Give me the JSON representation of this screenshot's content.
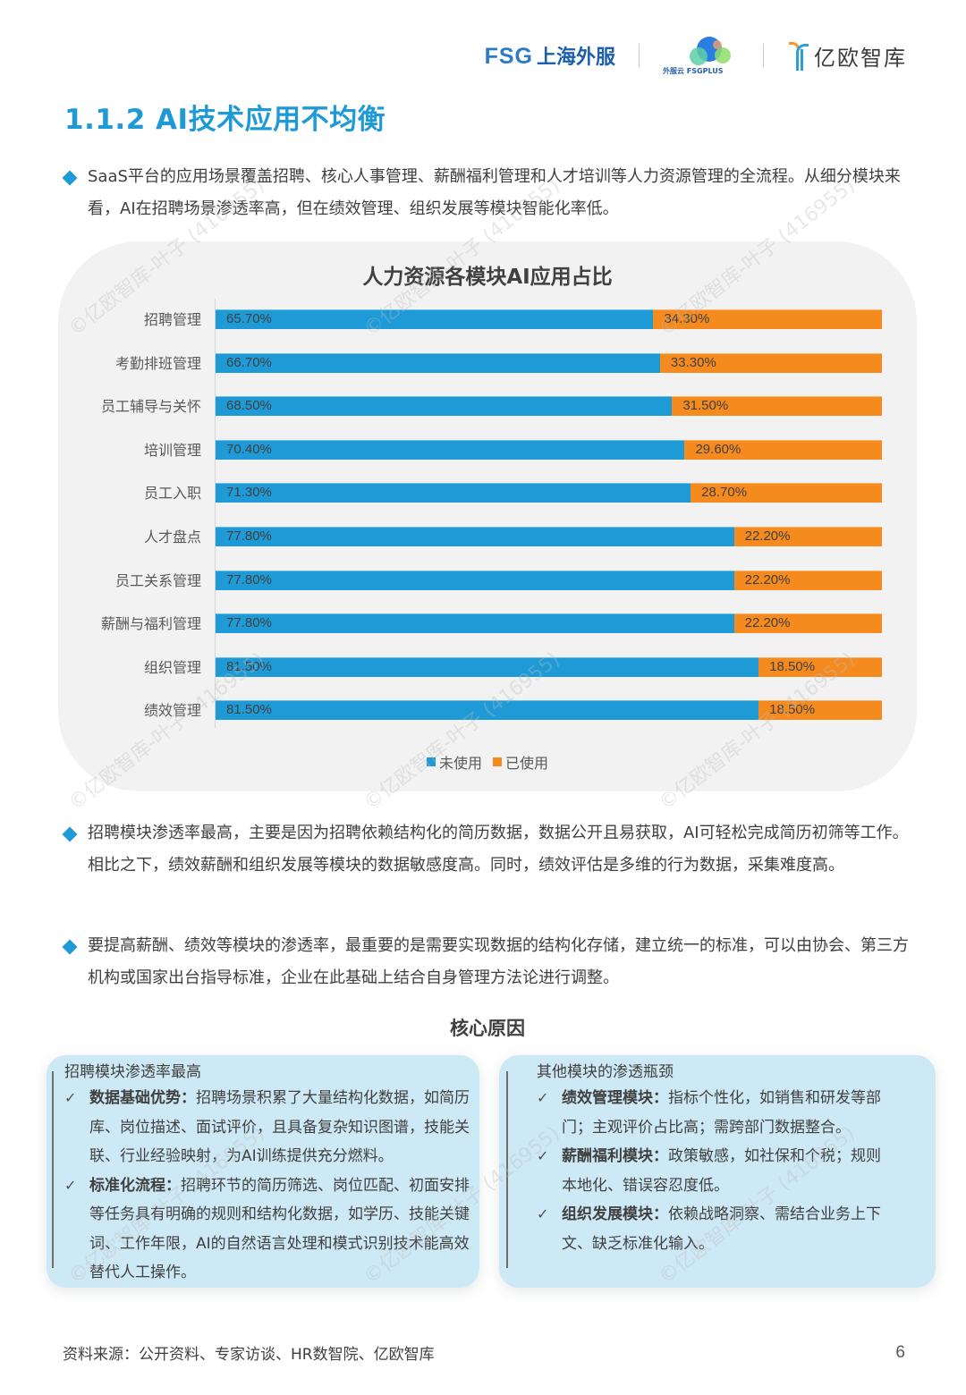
{
  "header": {
    "logos": [
      {
        "en": "FSG",
        "cn": "上海外服"
      },
      {
        "text": "外服云 FSGPLUS"
      },
      {
        "name": "亿欧智库"
      }
    ]
  },
  "section_title": "1.1.2 AI技术应用不均衡",
  "paragraphs": [
    "SaaS平台的应用场景覆盖招聘、核心人事管理、薪酬福利管理和人才培训等人力资源管理的全流程。从细分模块来看，AI在招聘场景渗透率高，但在绩效管理、组织发展等模块智能化率低。",
    "招聘模块渗透率最高，主要是因为招聘依赖结构化的简历数据，数据公开且易获取，AI可轻松完成简历初筛等工作。相比之下，绩效薪酬和组织发展等模块的数据敏感度高。同时，绩效评估是多维的行为数据，采集难度高。",
    "要提高薪酬、绩效等模块的渗透率，最重要的是需要实现数据的结构化存储，建立统一的标准，可以由协会、第三方机构或国家出台指导标准，企业在此基础上结合自身管理方法论进行调整。"
  ],
  "colors": {
    "title_blue": "#1e9ad6",
    "unused": "#1e9ad6",
    "used": "#f58a1f",
    "panel_bg": "#f2f2f2",
    "box_bg": "#cde9f5"
  },
  "chart_data": {
    "type": "bar",
    "orientation": "horizontal",
    "stacked": true,
    "percent": true,
    "title": "人力资源各模块AI应用占比",
    "categories": [
      "招聘管理",
      "考勤排班管理",
      "员工辅导与关怀",
      "培训管理",
      "员工入职",
      "人才盘点",
      "员工关系管理",
      "薪酬与福利管理",
      "组织管理",
      "绩效管理"
    ],
    "series": [
      {
        "name": "未使用",
        "color": "#1e9ad6",
        "values": [
          65.7,
          66.7,
          68.5,
          70.4,
          71.3,
          77.8,
          77.8,
          77.8,
          81.5,
          81.5
        ]
      },
      {
        "name": "已使用",
        "color": "#f58a1f",
        "values": [
          34.3,
          33.3,
          31.5,
          29.6,
          28.7,
          22.2,
          22.2,
          22.2,
          18.5,
          18.5
        ]
      }
    ],
    "labels_unused": [
      "65.70%",
      "66.70%",
      "68.50%",
      "70.40%",
      "71.30%",
      "77.80%",
      "77.80%",
      "77.80%",
      "81.50%",
      "81.50%"
    ],
    "labels_used": [
      "34.30%",
      "33.30%",
      "31.50%",
      "29.60%",
      "28.70%",
      "22.20%",
      "22.20%",
      "22.20%",
      "18.50%",
      "18.50%"
    ],
    "xlim": [
      0,
      100
    ],
    "grid": false,
    "legend": {
      "position": "bottom",
      "items": [
        "未使用",
        "已使用"
      ]
    }
  },
  "core": {
    "title": "核心原因",
    "left": {
      "head": "招聘模块渗透率最高",
      "items": [
        {
          "bold": "数据基础优势：",
          "text": "招聘场景积累了大量结构化数据，如简历库、岗位描述、面试评价，且具备复杂知识图谱，技能关联、行业经验映射，为AI训练提供充分燃料。"
        },
        {
          "bold": "标准化流程：",
          "text": "招聘环节的简历筛选、岗位匹配、初面安排等任务具有明确的规则和结构化数据，如学历、技能关键词、工作年限，AI的自然语言处理和模式识别技术能高效替代人工操作。"
        }
      ]
    },
    "right": {
      "head": "其他模块的渗透瓶颈",
      "items": [
        {
          "bold": "绩效管理模块：",
          "text": "指标个性化，如销售和研发等部门；主观评价占比高；需跨部门数据整合。"
        },
        {
          "bold": "薪酬福利模块：",
          "text": "政策敏感，如社保和个税；规则本地化、错误容忍度低。"
        },
        {
          "bold": "组织发展模块：",
          "text": "依赖战略洞察、需结合业务上下文、缺乏标准化输入。"
        }
      ]
    },
    "check_icon": "✓"
  },
  "footer": {
    "source": "资料来源：公开资料、专家访谈、HR数智院、亿欧智库",
    "page": "6"
  },
  "watermark": "©亿欧智库-叶子 (416955)"
}
